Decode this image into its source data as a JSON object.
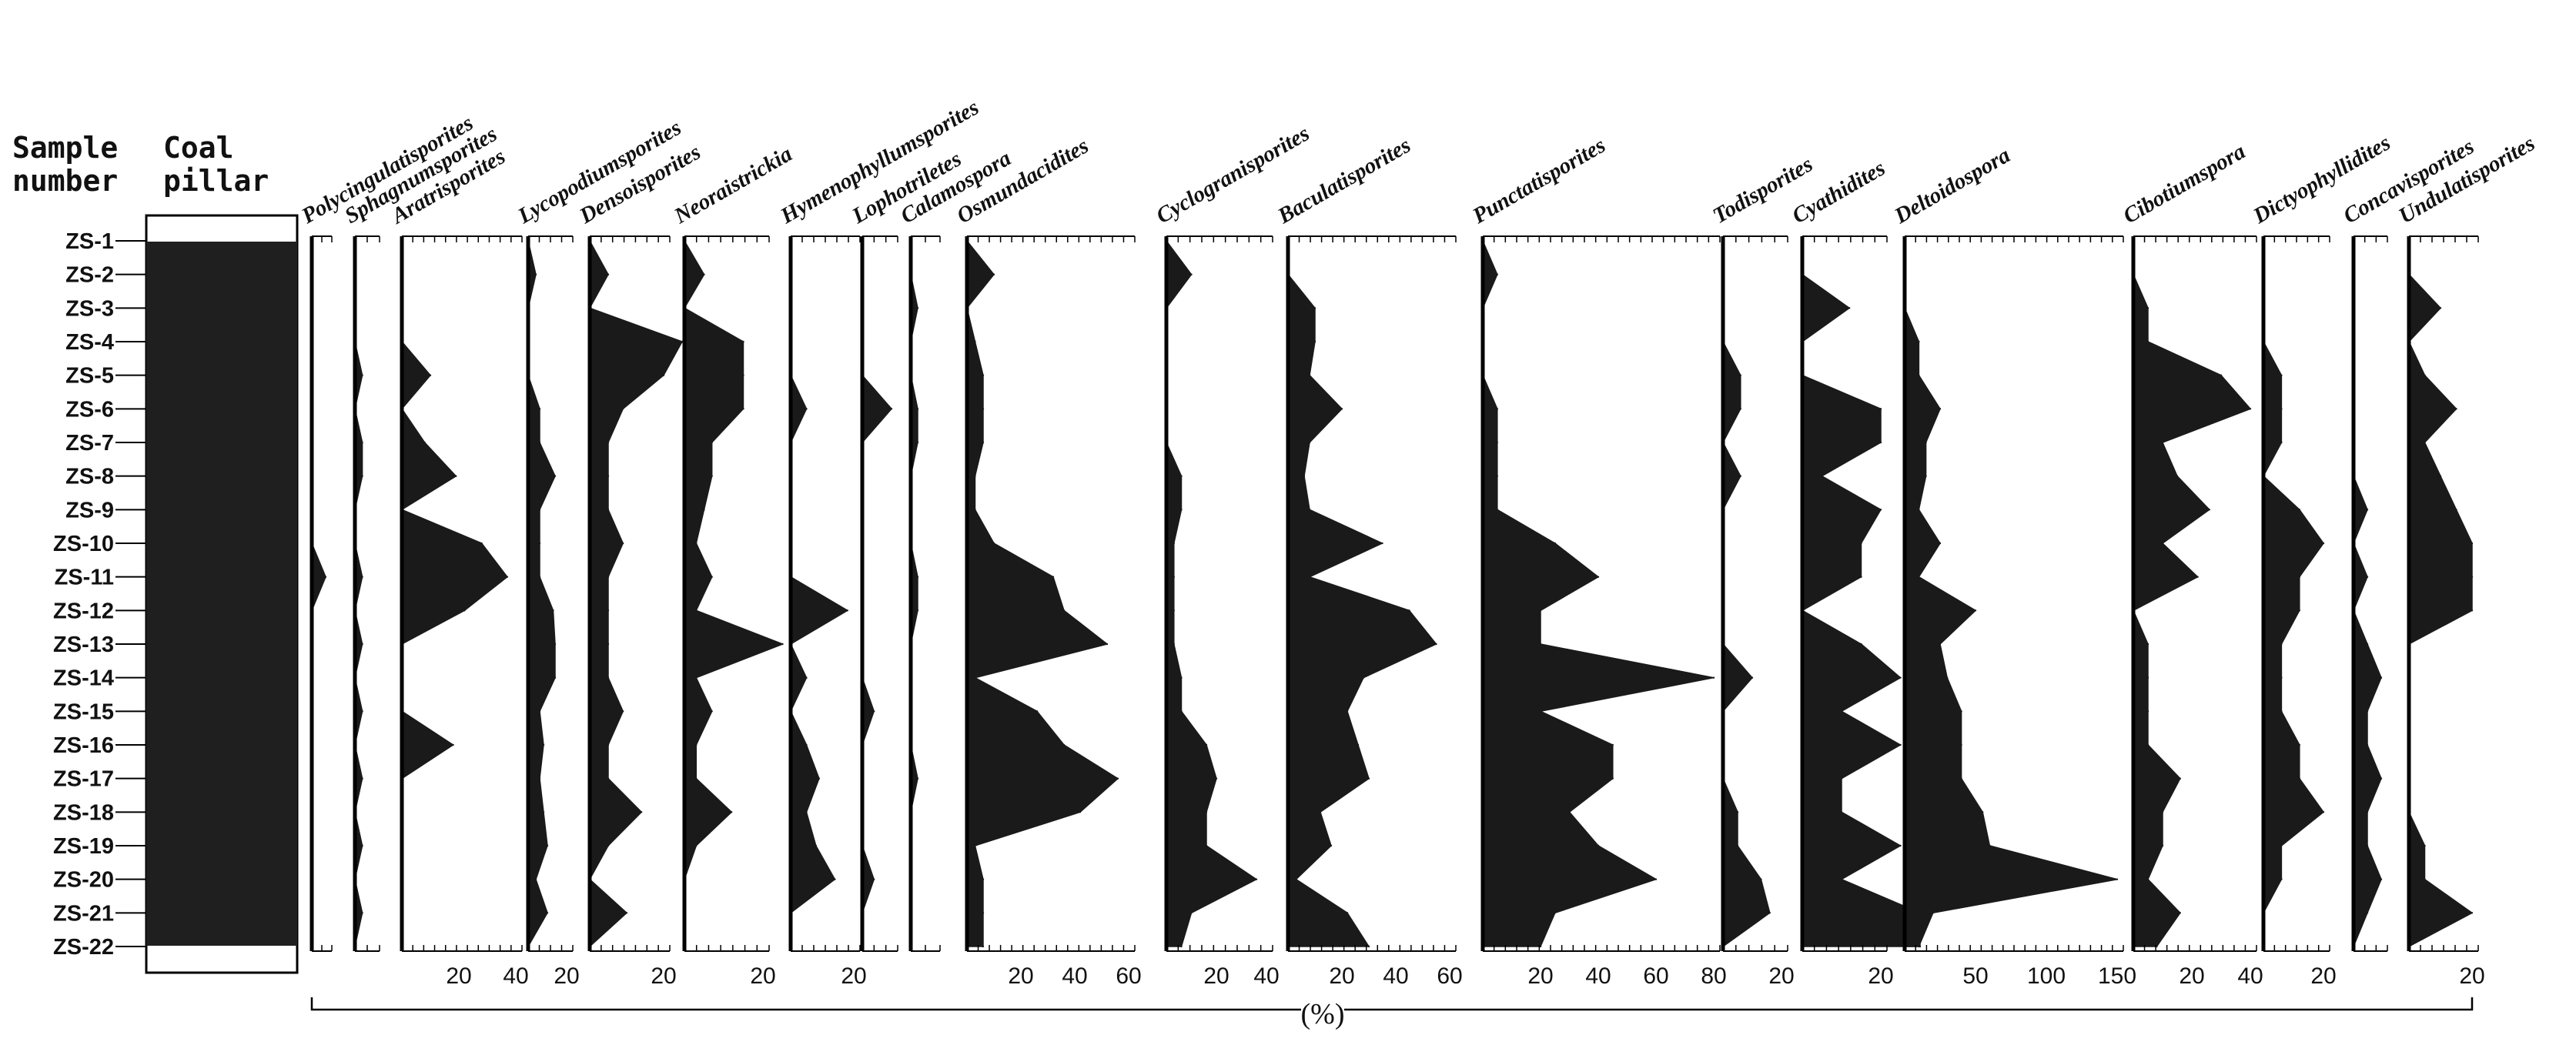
{
  "chart_data": {
    "type": "area",
    "orientation": "vertical-depth-profile",
    "header": {
      "sample": "Sample number",
      "sample_lines": [
        "Sample",
        "number"
      ],
      "pillar_lines": [
        "Coal",
        "pillar"
      ],
      "pillar": "Coal pillar"
    },
    "samples": [
      "ZS-1",
      "ZS-2",
      "ZS-3",
      "ZS-4",
      "ZS-5",
      "ZS-6",
      "ZS-7",
      "ZS-8",
      "ZS-9",
      "ZS-10",
      "ZS-11",
      "ZS-12",
      "ZS-13",
      "ZS-14",
      "ZS-15",
      "ZS-16",
      "ZS-17",
      "ZS-18",
      "ZS-19",
      "ZS-20",
      "ZS-21",
      "ZS-22"
    ],
    "coal_samples": {
      "from": "ZS-2",
      "to": "ZS-21"
    },
    "unit": "(%)",
    "series": [
      {
        "name": "Polycingulatisporites",
        "max": 5,
        "ticks": [],
        "values": [
          0,
          0,
          0,
          0,
          0,
          0,
          0,
          0,
          0,
          0,
          5,
          0,
          0,
          0,
          0,
          0,
          0,
          0,
          0,
          0,
          0,
          0
        ]
      },
      {
        "name": "Sphagnumsporites",
        "max": 10,
        "ticks": [],
        "values": [
          0,
          0,
          0,
          0,
          4,
          0,
          4,
          4,
          0,
          0,
          4,
          0,
          4,
          0,
          4,
          0,
          4,
          0,
          4,
          0,
          4,
          0
        ]
      },
      {
        "name": "Aratrisporites",
        "max": 40,
        "ticks": [
          20,
          40
        ],
        "values": [
          0,
          0,
          0,
          0,
          10,
          0,
          8,
          19,
          0,
          28,
          37,
          22,
          0,
          0,
          0,
          18,
          0,
          0,
          0,
          0,
          0,
          0
        ]
      },
      {
        "name": "Lycopodiumsporites",
        "max": 20,
        "ticks": [
          20
        ],
        "values": [
          0,
          4,
          0,
          0,
          0,
          6,
          6,
          14,
          6,
          6,
          6,
          13,
          14,
          14,
          6,
          8,
          6,
          8,
          10,
          4,
          10,
          0
        ]
      },
      {
        "name": "Densoisporites",
        "max": 20,
        "ticks": [
          20
        ],
        "values": [
          0,
          5,
          0,
          25,
          20,
          9,
          5,
          5,
          5,
          9,
          5,
          5,
          5,
          5,
          9,
          5,
          5,
          14,
          5,
          0,
          10,
          0
        ]
      },
      {
        "name": "Neoraistrickia",
        "max": 20,
        "ticks": [
          20
        ],
        "values": [
          0,
          5,
          0,
          15,
          15,
          15,
          7,
          7,
          5,
          3,
          7,
          3,
          25,
          3,
          7,
          3,
          3,
          12,
          3,
          0,
          0,
          0
        ]
      },
      {
        "name": "Hymenophyllumsporites",
        "max": 20,
        "ticks": [
          20
        ],
        "values": [
          0,
          0,
          0,
          0,
          0,
          5,
          0,
          0,
          0,
          0,
          0,
          18,
          0,
          5,
          0,
          5,
          9,
          5,
          8,
          14,
          0,
          0
        ]
      },
      {
        "name": "Lophotriletes",
        "max": 10,
        "ticks": [],
        "values": [
          0,
          0,
          0,
          0,
          0,
          10,
          0,
          0,
          0,
          0,
          0,
          0,
          0,
          0,
          4,
          0,
          0,
          0,
          0,
          4,
          0,
          0
        ]
      },
      {
        "name": "Calamospora",
        "max": 10,
        "ticks": [],
        "values": [
          0,
          0,
          3,
          0,
          0,
          3,
          3,
          0,
          0,
          0,
          3,
          3,
          0,
          0,
          0,
          0,
          3,
          0,
          0,
          0,
          0,
          0
        ]
      },
      {
        "name": "Osmundacidites",
        "max": 60,
        "ticks": [
          20,
          40,
          60
        ],
        "values": [
          0,
          10,
          0,
          3,
          6,
          6,
          6,
          3,
          3,
          10,
          32,
          36,
          52,
          3,
          26,
          36,
          56,
          42,
          3,
          6,
          6,
          6
        ]
      },
      {
        "name": "Cyclogranisporites",
        "max": 40,
        "ticks": [
          20,
          40
        ],
        "values": [
          0,
          10,
          0,
          0,
          0,
          0,
          0,
          6,
          6,
          3,
          3,
          3,
          3,
          6,
          6,
          16,
          20,
          16,
          16,
          36,
          10,
          6
        ]
      },
      {
        "name": "Baculatisporites",
        "max": 60,
        "ticks": [
          20,
          40,
          60
        ],
        "values": [
          0,
          0,
          10,
          10,
          8,
          20,
          8,
          6,
          8,
          35,
          8,
          45,
          55,
          28,
          22,
          26,
          30,
          12,
          16,
          3,
          22,
          30
        ]
      },
      {
        "name": "Punctatisporites",
        "max": 80,
        "ticks": [
          20,
          40,
          60,
          80
        ],
        "values": [
          0,
          5,
          0,
          0,
          0,
          5,
          5,
          5,
          5,
          25,
          40,
          20,
          20,
          80,
          20,
          45,
          45,
          30,
          40,
          60,
          25,
          20
        ]
      },
      {
        "name": "Todisporites",
        "max": 20,
        "ticks": [
          20
        ],
        "values": [
          0,
          0,
          0,
          0,
          6,
          6,
          0,
          6,
          0,
          0,
          0,
          0,
          0,
          10,
          0,
          0,
          0,
          5,
          5,
          13,
          16,
          0
        ]
      },
      {
        "name": "Cyathidites",
        "max": 20,
        "ticks": [
          20
        ],
        "values": [
          0,
          0,
          12,
          0,
          0,
          20,
          20,
          5,
          20,
          15,
          15,
          0,
          15,
          25,
          10,
          25,
          10,
          10,
          25,
          10,
          30,
          30
        ]
      },
      {
        "name": "Deltoidospora",
        "max": 150,
        "ticks": [
          50,
          100,
          150
        ],
        "values": [
          0,
          0,
          0,
          10,
          10,
          25,
          15,
          15,
          10,
          25,
          10,
          50,
          25,
          30,
          40,
          40,
          40,
          55,
          60,
          150,
          20,
          10
        ]
      },
      {
        "name": "Cibotiumspora",
        "max": 40,
        "ticks": [
          20,
          40
        ],
        "values": [
          0,
          0,
          5,
          5,
          30,
          40,
          10,
          15,
          26,
          10,
          22,
          0,
          5,
          5,
          5,
          5,
          16,
          10,
          10,
          5,
          16,
          8
        ]
      },
      {
        "name": "Dictyophyllidites",
        "max": 20,
        "ticks": [
          20
        ],
        "values": [
          0,
          0,
          0,
          0,
          6,
          6,
          6,
          0,
          12,
          20,
          12,
          12,
          6,
          6,
          6,
          12,
          12,
          20,
          6,
          6,
          0,
          0
        ]
      },
      {
        "name": "Concavisporites",
        "max": 10,
        "ticks": [],
        "values": [
          0,
          0,
          0,
          0,
          0,
          0,
          0,
          0,
          5,
          0,
          5,
          0,
          5,
          10,
          5,
          5,
          10,
          5,
          5,
          10,
          5,
          0
        ]
      },
      {
        "name": "Undulatisporites",
        "max": 20,
        "ticks": [
          20
        ],
        "values": [
          0,
          0,
          10,
          0,
          5,
          15,
          5,
          10,
          15,
          20,
          20,
          20,
          0,
          0,
          0,
          0,
          0,
          0,
          5,
          5,
          20,
          0
        ]
      }
    ]
  }
}
